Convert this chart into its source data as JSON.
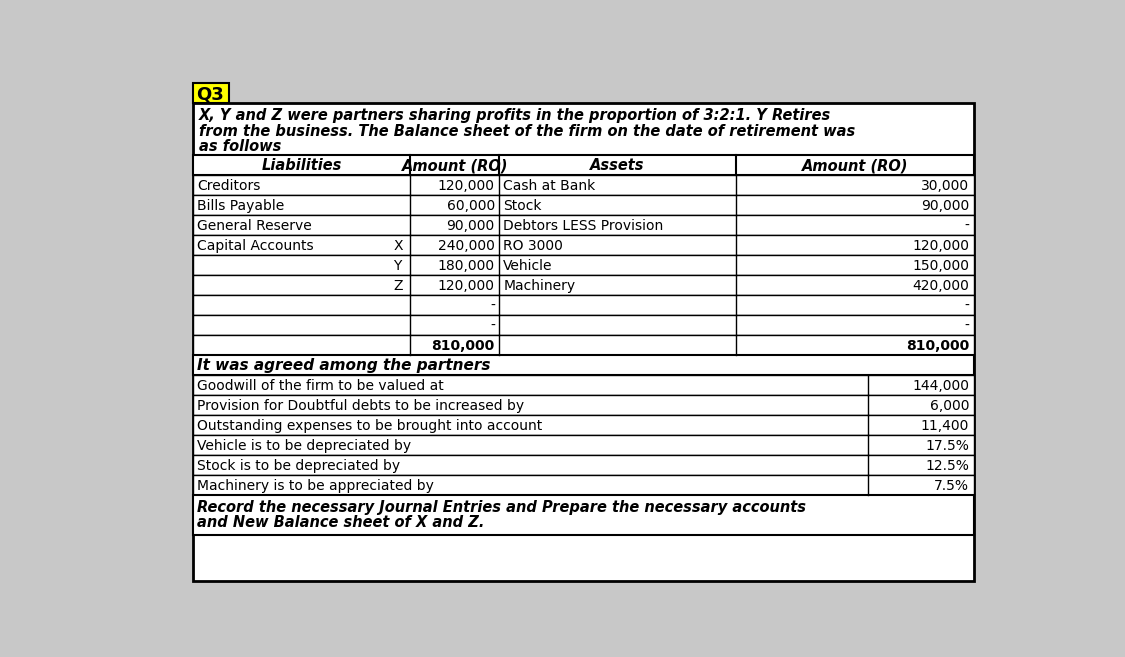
{
  "title_label": "Q3",
  "title_bg": "#ffff00",
  "intro_text_line1": "X, Y and Z were partners sharing profits in the proportion of 3:2:1. Y Retires",
  "intro_text_line2": "from the business. The Balance sheet of the firm on the date of retirement was",
  "intro_text_line3": "as follows",
  "balance_sheet_rows": [
    {
      "liab": "Creditors",
      "letter": "",
      "amt1": "120,000",
      "asset": "Cash at Bank",
      "amt2": "30,000"
    },
    {
      "liab": "Bills Payable",
      "letter": "",
      "amt1": "60,000",
      "asset": "Stock",
      "amt2": "90,000"
    },
    {
      "liab": "General Reserve",
      "letter": "",
      "amt1": "90,000",
      "asset": "Debtors LESS Provision",
      "amt2": "-"
    },
    {
      "liab": "Capital Accounts",
      "letter": "X",
      "amt1": "240,000",
      "asset": "RO 3000",
      "amt2": "120,000"
    },
    {
      "liab": "",
      "letter": "Y",
      "amt1": "180,000",
      "asset": "Vehicle",
      "amt2": "150,000"
    },
    {
      "liab": "",
      "letter": "Z",
      "amt1": "120,000",
      "asset": "Machinery",
      "amt2": "420,000"
    },
    {
      "liab": "",
      "letter": "",
      "amt1": "-",
      "asset": "",
      "amt2": "-"
    },
    {
      "liab": "",
      "letter": "",
      "amt1": "-",
      "asset": "",
      "amt2": "-"
    },
    {
      "liab": "",
      "letter": "",
      "amt1": "810,000",
      "asset": "",
      "amt2": "810,000",
      "total": true
    }
  ],
  "agreed_header": "It was agreed among the partners",
  "agreed_rows": [
    [
      "Goodwill of the firm to be valued at",
      "144,000"
    ],
    [
      "Provision for Doubtful debts to be increased by",
      "6,000"
    ],
    [
      "Outstanding expenses to be brought into account",
      "11,400"
    ],
    [
      "Vehicle is to be depreciated by",
      "17.5%"
    ],
    [
      "Stock is to be depreciated by",
      "12.5%"
    ],
    [
      "Machinery is to be appreciated by",
      "7.5%"
    ]
  ],
  "footer_line1": "Record the necessary Journal Entries and Prepare the necessary accounts",
  "footer_line2": "and New Balance sheet of X and Z.",
  "outer_bg": "#c8c8c8",
  "box_bg": "#ffffff"
}
